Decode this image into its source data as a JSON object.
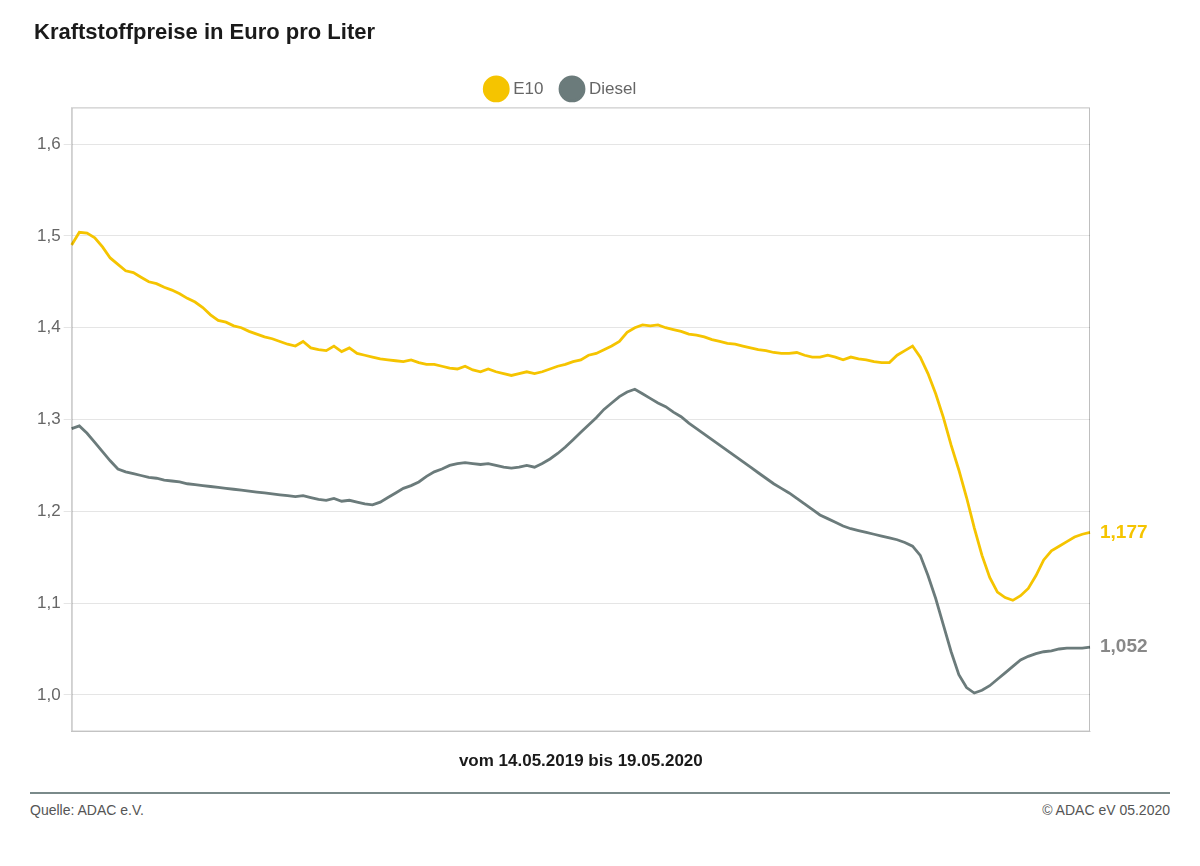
{
  "chart_data": {
    "type": "line",
    "title": "Kraftstoffpreise in Euro pro Liter",
    "xlabel": "vom 14.05.2019 bis 19.05.2020",
    "series": [
      {
        "name": "E10",
        "color": "#F5C400",
        "values": [
          1.49,
          1.504,
          1.503,
          1.498,
          1.488,
          1.476,
          1.469,
          1.462,
          1.46,
          1.455,
          1.45,
          1.448,
          1.444,
          1.441,
          1.437,
          1.432,
          1.428,
          1.422,
          1.414,
          1.408,
          1.406,
          1.402,
          1.4,
          1.396,
          1.393,
          1.39,
          1.388,
          1.385,
          1.382,
          1.38,
          1.385,
          1.378,
          1.376,
          1.375,
          1.38,
          1.374,
          1.378,
          1.372,
          1.37,
          1.368,
          1.366,
          1.365,
          1.364,
          1.363,
          1.365,
          1.362,
          1.36,
          1.36,
          1.358,
          1.356,
          1.355,
          1.358,
          1.354,
          1.352,
          1.355,
          1.352,
          1.35,
          1.348,
          1.35,
          1.352,
          1.35,
          1.352,
          1.355,
          1.358,
          1.36,
          1.363,
          1.365,
          1.37,
          1.372,
          1.376,
          1.38,
          1.385,
          1.395,
          1.4,
          1.403,
          1.402,
          1.403,
          1.4,
          1.398,
          1.396,
          1.393,
          1.392,
          1.39,
          1.387,
          1.385,
          1.383,
          1.382,
          1.38,
          1.378,
          1.376,
          1.375,
          1.373,
          1.372,
          1.372,
          1.373,
          1.37,
          1.368,
          1.368,
          1.37,
          1.368,
          1.365,
          1.368,
          1.366,
          1.365,
          1.363,
          1.362,
          1.362,
          1.37,
          1.375,
          1.38,
          1.368,
          1.35,
          1.328,
          1.302,
          1.272,
          1.245,
          1.215,
          1.182,
          1.152,
          1.128,
          1.112,
          1.106,
          1.103,
          1.108,
          1.116,
          1.13,
          1.147,
          1.157,
          1.162,
          1.167,
          1.172,
          1.175,
          1.177
        ]
      },
      {
        "name": "Diesel",
        "color": "#6B7B7B",
        "values": [
          1.29,
          1.293,
          1.285,
          1.275,
          1.265,
          1.255,
          1.246,
          1.243,
          1.241,
          1.239,
          1.237,
          1.236,
          1.234,
          1.233,
          1.232,
          1.23,
          1.229,
          1.228,
          1.227,
          1.226,
          1.225,
          1.224,
          1.223,
          1.222,
          1.221,
          1.22,
          1.219,
          1.218,
          1.217,
          1.216,
          1.217,
          1.215,
          1.213,
          1.212,
          1.214,
          1.211,
          1.212,
          1.21,
          1.208,
          1.207,
          1.21,
          1.215,
          1.22,
          1.225,
          1.228,
          1.232,
          1.238,
          1.243,
          1.246,
          1.25,
          1.252,
          1.253,
          1.252,
          1.251,
          1.252,
          1.25,
          1.248,
          1.247,
          1.248,
          1.25,
          1.248,
          1.252,
          1.257,
          1.263,
          1.27,
          1.278,
          1.286,
          1.294,
          1.302,
          1.311,
          1.318,
          1.325,
          1.33,
          1.333,
          1.328,
          1.323,
          1.318,
          1.314,
          1.308,
          1.303,
          1.296,
          1.29,
          1.284,
          1.278,
          1.272,
          1.266,
          1.26,
          1.254,
          1.248,
          1.242,
          1.236,
          1.23,
          1.225,
          1.22,
          1.214,
          1.208,
          1.202,
          1.196,
          1.192,
          1.188,
          1.184,
          1.181,
          1.179,
          1.177,
          1.175,
          1.173,
          1.171,
          1.169,
          1.166,
          1.162,
          1.152,
          1.13,
          1.105,
          1.076,
          1.047,
          1.022,
          1.008,
          1.002,
          1.005,
          1.01,
          1.017,
          1.024,
          1.031,
          1.038,
          1.042,
          1.045,
          1.047,
          1.048,
          1.05,
          1.051,
          1.051,
          1.051,
          1.052
        ]
      }
    ],
    "ylim": [
      0.96,
      1.64
    ],
    "yticks": [
      {
        "value": 1.0,
        "label": "1,0"
      },
      {
        "value": 1.1,
        "label": "1,1"
      },
      {
        "value": 1.2,
        "label": "1,2"
      },
      {
        "value": 1.3,
        "label": "1,3"
      },
      {
        "value": 1.4,
        "label": "1,4"
      },
      {
        "value": 1.5,
        "label": "1,5"
      },
      {
        "value": 1.6,
        "label": "1,6"
      }
    ],
    "annotations": [
      {
        "text": "1,177",
        "y": 1.177,
        "color": "#F5C400"
      },
      {
        "text": "1,052",
        "y": 1.052,
        "color": "#888888"
      }
    ],
    "footer_left": "Quelle: ADAC e.V.",
    "footer_right": "© ADAC eV 05.2020",
    "grid": true,
    "tick_labels": "y",
    "legend": "top"
  }
}
